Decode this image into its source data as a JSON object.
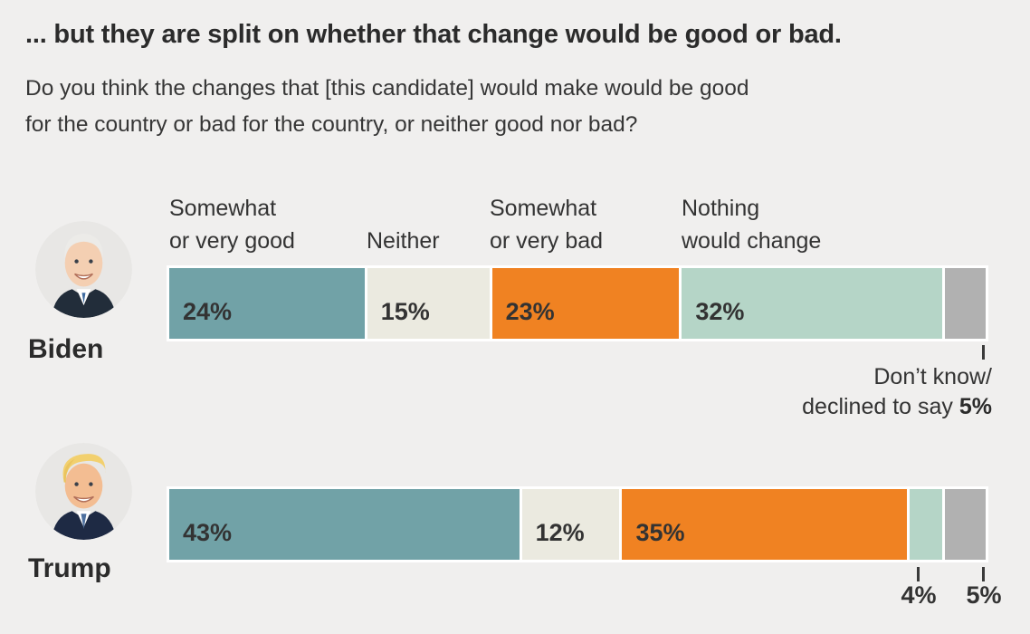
{
  "title": "... but they are split on whether that change would be good or bad.",
  "subtitle": {
    "lines": [
      "Do you think the changes that [this candidate] would make would be good",
      "for the country or bad for the country, or neither good nor bad?"
    ]
  },
  "column_headers": [
    {
      "line1": "Somewhat",
      "line2": "or very good"
    },
    {
      "line1": "",
      "line2": "Neither"
    },
    {
      "line1": "Somewhat",
      "line2": "or very bad"
    },
    {
      "line1": "Nothing",
      "line2": "would change"
    }
  ],
  "rows": [
    {
      "name": "Biden"
    },
    {
      "name": "Trump"
    }
  ],
  "biden_note": {
    "line1": "Don’t know/",
    "line2_prefix": "declined to say ",
    "value": "5%"
  },
  "trump_notes": {
    "nothing_would_change": "4%",
    "dont_know": "5%"
  },
  "colors": {
    "good": "#71a2a7",
    "neither": "#ebeae0",
    "bad": "#f08222",
    "nothing": "#b5d5c7",
    "dont_know": "#b1b1b1",
    "background": "#f0efee",
    "bar_outline": "#ffffff",
    "text": "#333333"
  },
  "chart_data": {
    "type": "bar",
    "orientation": "horizontal-stacked",
    "title": "... but they are split on whether that change would be good or bad.",
    "subtitle": "Do you think the changes that [this candidate] would make would be good for the country or bad for the country, or neither good nor bad?",
    "categories": [
      "Somewhat or very good",
      "Neither",
      "Somewhat or very bad",
      "Nothing would change",
      "Don't know/declined to say"
    ],
    "series": [
      {
        "name": "Biden",
        "values": [
          24,
          15,
          23,
          32,
          5
        ]
      },
      {
        "name": "Trump",
        "values": [
          43,
          12,
          35,
          4,
          5
        ]
      }
    ],
    "colors": [
      "#71a2a7",
      "#ebeae0",
      "#f08222",
      "#b5d5c7",
      "#b1b1b1"
    ],
    "xlim": [
      0,
      100
    ],
    "value_unit": "%",
    "grid": false,
    "legend_position": "column-headers-above-first-bar"
  }
}
